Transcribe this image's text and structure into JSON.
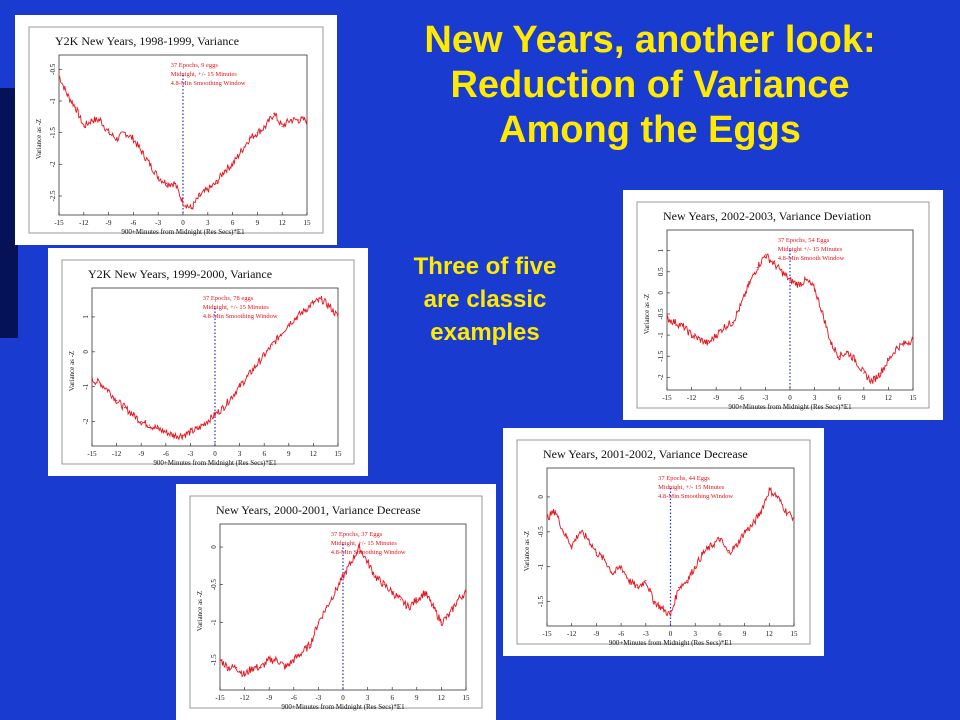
{
  "slide": {
    "title_lines": [
      "New Years, another look:",
      "Reduction of Variance",
      "Among the Eggs"
    ],
    "note_lines": [
      "Three of five",
      "are classic",
      "examples"
    ],
    "colors": {
      "background": "#1a3bd0",
      "title": "#ffea00",
      "trace": "#e8141c",
      "midline": "#2a2ae0"
    }
  },
  "chart_data": [
    {
      "type": "line",
      "title": "Y2K New Years, 1998-1999, Variance",
      "xlabel": "900+Minutes from Midnight (Res Secs)*E1",
      "ylabel": "Variance as -Z",
      "annotation": [
        "37 Epochs, 9 eggs",
        "Midnight, +/- 15 Minutes",
        "4.8-Min Smoothing Window"
      ],
      "x_ticks": [
        "-15",
        "-12",
        "-9",
        "-6",
        "-3",
        "0",
        "3",
        "6",
        "9",
        "12",
        "15"
      ],
      "y_ticks": [
        "-0.5",
        "-1",
        "-1.5",
        "-2",
        "-2.5"
      ],
      "ylim": [
        -2.8,
        -0.4
      ],
      "xlim": [
        -15,
        15
      ],
      "x": [
        -15,
        -14,
        -13,
        -12,
        -11,
        -10,
        -9,
        -8,
        -7,
        -6,
        -5,
        -4,
        -3,
        -2,
        -1,
        0,
        1,
        2,
        3,
        4,
        5,
        6,
        7,
        8,
        9,
        10,
        11,
        12,
        13,
        14,
        15
      ],
      "y": [
        -0.6,
        -0.9,
        -1.1,
        -1.4,
        -1.3,
        -1.3,
        -1.5,
        -1.6,
        -1.5,
        -1.6,
        -1.8,
        -2.0,
        -2.2,
        -2.3,
        -2.3,
        -2.6,
        -2.7,
        -2.5,
        -2.4,
        -2.3,
        -2.1,
        -2.0,
        -1.8,
        -1.6,
        -1.5,
        -1.4,
        -1.2,
        -1.4,
        -1.3,
        -1.3,
        -1.3
      ]
    },
    {
      "type": "line",
      "title": "Y2K New Years, 1999-2000, Variance",
      "xlabel": "900+Minutes from Midnight (Res Secs)*E1",
      "ylabel": "Variance as -Z",
      "annotation": [
        "37 Epochs, 78 eggs",
        "Midnight, +/- 15 Minutes",
        "4.8-Min Smoothing Window"
      ],
      "x_ticks": [
        "-15",
        "-12",
        "-9",
        "-6",
        "-3",
        "0",
        "3",
        "6",
        "9",
        "12",
        "15"
      ],
      "y_ticks": [
        "1",
        "0",
        "-1",
        "-2"
      ],
      "ylim": [
        -2.7,
        1.6
      ],
      "xlim": [
        -15,
        15
      ],
      "x": [
        -15,
        -14,
        -13,
        -12,
        -11,
        -10,
        -9,
        -8,
        -7,
        -6,
        -5,
        -4,
        -3,
        -2,
        -1,
        0,
        1,
        2,
        3,
        4,
        5,
        6,
        7,
        8,
        9,
        10,
        11,
        12,
        13,
        14,
        15
      ],
      "y": [
        -0.8,
        -0.9,
        -1.1,
        -1.4,
        -1.6,
        -1.8,
        -2.0,
        -2.1,
        -2.2,
        -2.3,
        -2.4,
        -2.4,
        -2.3,
        -2.2,
        -2.0,
        -1.8,
        -1.6,
        -1.3,
        -1.0,
        -0.7,
        -0.4,
        -0.1,
        0.2,
        0.5,
        0.8,
        1.0,
        1.2,
        1.4,
        1.5,
        1.3,
        1.0
      ]
    },
    {
      "type": "line",
      "title": "New Years, 2000-2001, Variance Decrease",
      "xlabel": "900+Minutes from Midnight (Res Secs)*E1",
      "ylabel": "Variance as -Z",
      "annotation": [
        "37 Epochs, 37 Eggs",
        "Midnight, +/- 15 Minutes",
        "4.8-Min Smoothing Window"
      ],
      "x_ticks": [
        "-15",
        "-12",
        "-9",
        "-6",
        "-3",
        "0",
        "3",
        "6",
        "9",
        "12",
        "15"
      ],
      "y_ticks": [
        "0",
        "-0.5",
        "-1",
        "-1.5"
      ],
      "ylim": [
        -1.9,
        0.2
      ],
      "xlim": [
        -15,
        15
      ],
      "x": [
        -15,
        -14,
        -13,
        -12,
        -11,
        -10,
        -9,
        -8,
        -7,
        -6,
        -5,
        -4,
        -3,
        -2,
        -1,
        0,
        1,
        2,
        3,
        4,
        5,
        6,
        7,
        8,
        9,
        10,
        11,
        12,
        13,
        14,
        15
      ],
      "y": [
        -1.5,
        -1.6,
        -1.6,
        -1.7,
        -1.6,
        -1.6,
        -1.5,
        -1.5,
        -1.6,
        -1.5,
        -1.4,
        -1.3,
        -1.0,
        -0.8,
        -0.6,
        -0.4,
        -0.2,
        0.0,
        -0.2,
        -0.4,
        -0.5,
        -0.6,
        -0.7,
        -0.8,
        -0.7,
        -0.6,
        -0.8,
        -1.0,
        -0.9,
        -0.7,
        -0.6
      ]
    },
    {
      "type": "line",
      "title": "New Years, 2002-2003, Variance Deviation",
      "xlabel": "900+Minutes from Midnight (Res Secs)*E1",
      "ylabel": "Variance as -Z",
      "annotation": [
        "37 Epochs, 54 Eggs",
        "Midnight +/- 15 Minutes",
        "4.8-Min Smooth Window"
      ],
      "x_ticks": [
        "-15",
        "-12",
        "-9",
        "-6",
        "-3",
        "0",
        "3",
        "6",
        "9",
        "12",
        "15"
      ],
      "y_ticks": [
        "1",
        "0.5",
        "0",
        "-0.5",
        "-1",
        "-1.5",
        "-2"
      ],
      "ylim": [
        -2.3,
        1.3
      ],
      "xlim": [
        -15,
        15
      ],
      "x": [
        -15,
        -14,
        -13,
        -12,
        -11,
        -10,
        -9,
        -8,
        -7,
        -6,
        -5,
        -4,
        -3,
        -2,
        -1,
        0,
        1,
        2,
        3,
        4,
        5,
        6,
        7,
        8,
        9,
        10,
        11,
        12,
        13,
        14,
        15
      ],
      "y": [
        -0.6,
        -0.7,
        -0.8,
        -1.0,
        -1.1,
        -1.2,
        -1.0,
        -0.8,
        -0.7,
        -0.3,
        0.2,
        0.6,
        0.9,
        0.7,
        0.5,
        0.3,
        0.2,
        0.3,
        0.1,
        -0.5,
        -1.2,
        -1.5,
        -1.4,
        -1.6,
        -1.9,
        -2.1,
        -1.9,
        -1.6,
        -1.3,
        -1.2,
        -1.1
      ]
    },
    {
      "type": "line",
      "title": "New Years, 2001-2002, Variance Decrease",
      "xlabel": "900+Minutes from Midnight (Res Secs)*E1",
      "ylabel": "Variance as -Z",
      "annotation": [
        "37 Epochs, 44 Eggs",
        "Midnight, +/- 15 Minutes",
        "4.8-Min Smoothing Window"
      ],
      "x_ticks": [
        "-15",
        "-12",
        "-9",
        "-6",
        "-3",
        "0",
        "3",
        "6",
        "9",
        "12",
        "15"
      ],
      "y_ticks": [
        "0",
        "-0.5",
        "-1",
        "-1.5"
      ],
      "ylim": [
        -1.85,
        0.3
      ],
      "xlim": [
        -15,
        15
      ],
      "x": [
        -15,
        -14,
        -13,
        -12,
        -11,
        -10,
        -9,
        -8,
        -7,
        -6,
        -5,
        -4,
        -3,
        -2,
        -1,
        0,
        1,
        2,
        3,
        4,
        5,
        6,
        7,
        8,
        9,
        10,
        11,
        12,
        13,
        14,
        15
      ],
      "y": [
        -0.3,
        -0.2,
        -0.5,
        -0.7,
        -0.5,
        -0.6,
        -0.8,
        -0.9,
        -1.1,
        -1.0,
        -1.2,
        -1.3,
        -1.2,
        -1.5,
        -1.6,
        -1.7,
        -1.3,
        -1.2,
        -1.0,
        -0.8,
        -0.7,
        -0.6,
        -0.8,
        -0.7,
        -0.5,
        -0.4,
        -0.2,
        0.1,
        0.0,
        -0.2,
        -0.3
      ]
    }
  ]
}
